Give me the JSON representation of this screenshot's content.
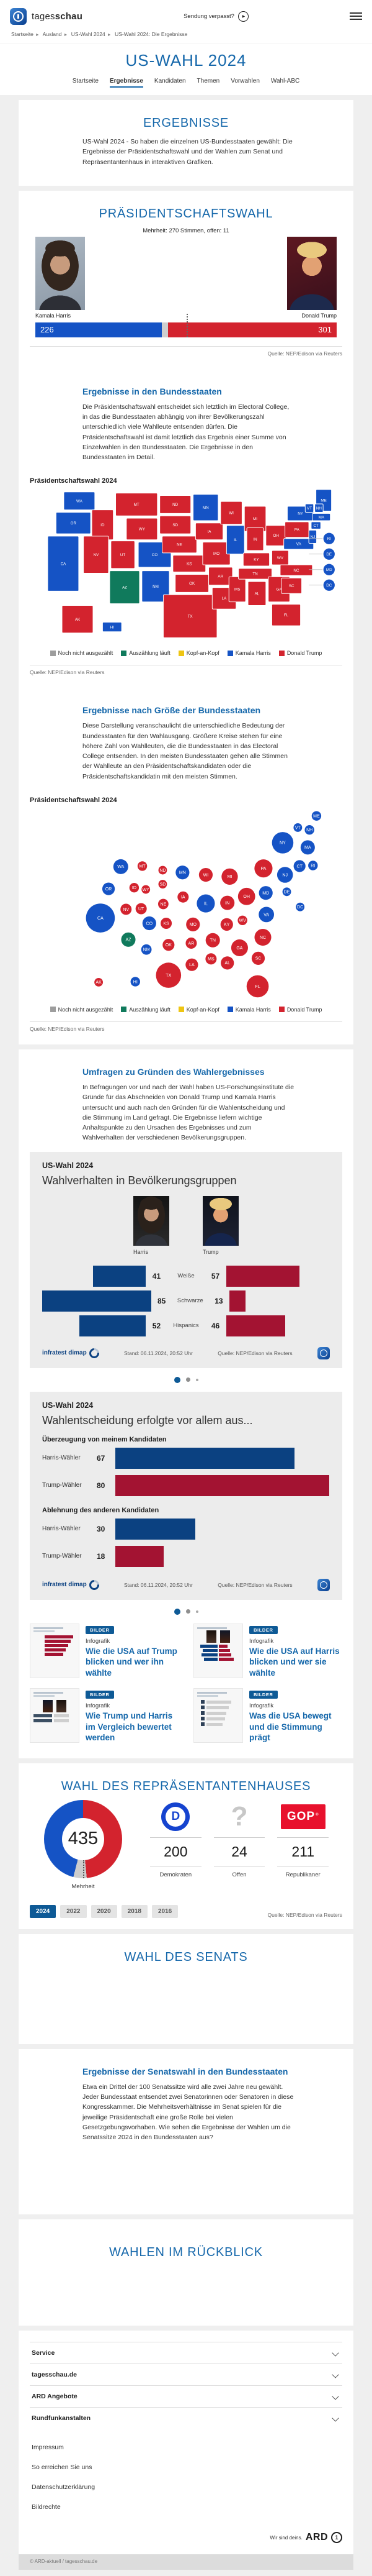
{
  "header": {
    "brand_light": "tages",
    "brand_bold": "schau",
    "sendung_verpasst": "Sendung verpasst?"
  },
  "breadcrumb": [
    "Startseite",
    "Ausland",
    "US-Wahl 2024",
    "US-Wahl 2024: Die Ergebnisse"
  ],
  "hero": {
    "title": "US-WAHL 2024",
    "tabs": [
      {
        "label": "Startseite",
        "active": false
      },
      {
        "label": "Ergebnisse",
        "active": true
      },
      {
        "label": "Kandidaten",
        "active": false
      },
      {
        "label": "Themen",
        "active": false
      },
      {
        "label": "Vorwahlen",
        "active": false
      },
      {
        "label": "Wahl-ABC",
        "active": false
      }
    ]
  },
  "ergebnisse": {
    "heading": "ERGEBNISSE",
    "text": "US-Wahl 2024 - So haben die einzelnen US-Bundesstaaten gewählt: Die Ergebnisse der Präsidentschaftswahl und der Wahlen zum Senat und Repräsentantenhaus in interaktiven Grafiken."
  },
  "praesident": {
    "heading": "PRÄSIDENTSCHAFTSWAHL",
    "majority_note": "Mehrheit: 270 Stimmen, offen: 11",
    "harris_name": "Kamala Harris",
    "trump_name": "Donald Trump",
    "quelle": "Quelle: NEP/Edison via Reuters"
  },
  "states_section": {
    "heading": "Ergebnisse in den Bundesstaaten",
    "text": "Die Präsidentschaftswahl entscheidet sich letztlich im Electoral College, in das die Bundesstaaten abhängig von ihrer Bevölkerungszahl unterschiedlich viele Wahlleute entsenden dürfen. Die Präsidentschaftswahl ist damit letztlich das Ergebnis einer Summe von Einzelwahlen in den Bundesstaaten. Die Ergebnisse in den Bundesstaaten im Detail.",
    "chart_label": "Präsidentschaftswahl 2024",
    "quelle": "Quelle: NEP/Edison via Reuters"
  },
  "size_section": {
    "heading": "Ergebnisse nach Größe der Bundesstaaten",
    "text": "Diese Darstellung veranschaulicht die unterschiedliche Bedeutung der Bundesstaaten für den Wahlausgang. Größere Kreise stehen für eine höhere Zahl von Wahlleuten, die die Bundesstaaten in das Electoral College entsenden. In den meisten Bundesstaaten gehen alle Stimmen der Wahlleute an den Präsidentschaftskandidaten oder die Präsidentschaftskandidatin mit den meisten Stimmen.",
    "chart_label": "Präsidentschaftswahl 2024",
    "quelle": "Quelle: NEP/Edison via Reuters"
  },
  "umfragen": {
    "heading": "Umfragen zu Gründen des Wahlergebnisses",
    "text": "In Befragungen vor und nach der Wahl haben US-Forschungsinstitute die Gründe für das Abschneiden von Donald Trump und Kamala Harris untersucht und auch nach den Gründen für die Wahlentscheidung und die Stimmung im Land gefragt. Die Ergebnisse liefern wichtige Anhaltspunkte zu den Ursachen des Ergebnisses und zum Wahlverhalten der verschiedenen Bevölkerungsgruppen."
  },
  "teasers": {
    "badge": "BILDER",
    "kind": "Infografik",
    "items": [
      {
        "title": "Wie die USA auf Trump blicken und wer ihn wählte"
      },
      {
        "title": "Wie die USA auf Harris blicken und wer sie wählte"
      },
      {
        "title": "Wie Trump und Harris im Vergleich bewertet werden"
      },
      {
        "title": "Was die USA bewegt und die Stimmung prägt"
      }
    ]
  },
  "senat": {
    "heading": "WAHL DES SENATS"
  },
  "senatswahl": {
    "heading": "Ergebnisse der Senatswahl in den Bundesstaaten",
    "text": "Etwa ein Drittel der 100 Senatssitze wird alle zwei Jahre neu gewählt. Jeder Bundesstaat entsendet zwei Senatorinnen oder Senatoren in diese Kongresskammer. Die Mehrheitsverhältnisse im Senat spielen für die jeweilige Präsidentschaft eine große Rolle bei vielen Gesetzgebungsvorhaben. Wie sehen die Ergebnisse der Wahlen um die Senatssitze 2024 in den Bundesstaaten aus?"
  },
  "rueckblick": {
    "heading": "WAHLEN IM RÜCKBLICK"
  },
  "footer": {
    "accordion": [
      "Service",
      "tagesschau.de",
      "ARD Angebote",
      "Rundfunkanstalten"
    ],
    "links": [
      "Impressum",
      "So erreichen Sie uns",
      "Datenschutzerklärung",
      "Bildrechte"
    ],
    "ard_slogan": "Wir sind deins.",
    "ard_word": "ARD",
    "copyright": "© ARD-aktuell / tagesschau.de"
  },
  "result_colors": {
    "harris": "#1553c5",
    "trump": "#d3232e",
    "counting": "#107a5c",
    "tossup": "#eec513",
    "open": "#9d9d9d",
    "infra_blue": "#0b4181",
    "infra_red": "#a31332"
  },
  "chart_data": [
    {
      "type": "bar",
      "name": "electoral-college-total",
      "title": "Präsidentschaftswahl 2024",
      "harris": 226,
      "open": 11,
      "trump": 301,
      "majority": 270,
      "total": 538,
      "source": "Quelle: NEP/Edison via Reuters"
    },
    {
      "type": "map",
      "name": "praesidentschaftswahl-bundesstaaten",
      "legend": [
        {
          "label": "Noch nicht ausgezählt",
          "key": "open"
        },
        {
          "label": "Auszählung läuft",
          "key": "counting"
        },
        {
          "label": "Kopf-an-Kopf",
          "key": "tossup"
        },
        {
          "label": "Kamala Harris",
          "key": "harris"
        },
        {
          "label": "Donald Trump",
          "key": "trump"
        }
      ],
      "states": [
        {
          "a": "WA",
          "w": "harris",
          "ev": 12,
          "g": [
            55,
            6,
            52,
            30
          ],
          "b": [
            148,
            101
          ]
        },
        {
          "a": "OR",
          "w": "harris",
          "ev": 8,
          "g": [
            42,
            40,
            58,
            36
          ],
          "b": [
            127,
            139
          ]
        },
        {
          "a": "CA",
          "w": "harris",
          "ev": 54,
          "g": [
            28,
            80,
            52,
            92
          ],
          "b": [
            113,
            189
          ]
        },
        {
          "a": "ID",
          "w": "trump",
          "ev": 4,
          "g": [
            102,
            36,
            36,
            50
          ],
          "b": [
            171,
            137
          ]
        },
        {
          "a": "NV",
          "w": "trump",
          "ev": 6,
          "g": [
            88,
            80,
            42,
            62
          ],
          "b": [
            157,
            174
          ]
        },
        {
          "a": "UT",
          "w": "trump",
          "ev": 6,
          "g": [
            134,
            88,
            40,
            46
          ],
          "b": [
            183,
            173
          ]
        },
        {
          "a": "AZ",
          "w": "counting",
          "ev": 11,
          "g": [
            132,
            138,
            50,
            55
          ],
          "b": [
            161,
            226
          ]
        },
        {
          "a": "MT",
          "w": "trump",
          "ev": 4,
          "g": [
            142,
            8,
            70,
            38
          ],
          "b": [
            185,
            100
          ]
        },
        {
          "a": "WY",
          "w": "trump",
          "ev": 3,
          "g": [
            160,
            50,
            52,
            36
          ],
          "b": [
            191,
            140
          ]
        },
        {
          "a": "CO",
          "w": "harris",
          "ev": 10,
          "g": [
            180,
            90,
            55,
            42
          ],
          "b": [
            197,
            198
          ]
        },
        {
          "a": "NM",
          "w": "harris",
          "ev": 5,
          "g": [
            186,
            138,
            46,
            52
          ],
          "b": [
            192,
            243
          ]
        },
        {
          "a": "ND",
          "w": "trump",
          "ev": 3,
          "g": [
            216,
            12,
            52,
            30
          ],
          "b": [
            220,
            107
          ]
        },
        {
          "a": "SD",
          "w": "trump",
          "ev": 3,
          "g": [
            216,
            46,
            52,
            30
          ],
          "b": [
            220,
            131
          ]
        },
        {
          "a": "NE",
          "w": "trump",
          "ev": 5,
          "g": [
            220,
            80,
            58,
            28
          ],
          "b": [
            221,
            165
          ]
        },
        {
          "a": "KS",
          "w": "trump",
          "ev": 6,
          "g": [
            238,
            112,
            55,
            28
          ],
          "b": [
            226,
            198
          ]
        },
        {
          "a": "OK",
          "w": "trump",
          "ev": 7,
          "g": [
            242,
            144,
            56,
            30
          ],
          "b": [
            230,
            235
          ]
        },
        {
          "a": "TX",
          "w": "trump",
          "ev": 40,
          "g": [
            222,
            178,
            90,
            72
          ],
          "b": [
            230,
            287
          ]
        },
        {
          "a": "MN",
          "w": "harris",
          "ev": 10,
          "g": [
            272,
            10,
            42,
            44
          ],
          "b": [
            254,
            111
          ]
        },
        {
          "a": "IA",
          "w": "trump",
          "ev": 6,
          "g": [
            276,
            58,
            46,
            28
          ],
          "b": [
            255,
            153
          ]
        },
        {
          "a": "MO",
          "w": "trump",
          "ev": 10,
          "g": [
            288,
            90,
            46,
            38
          ],
          "b": [
            272,
            200
          ]
        },
        {
          "a": "AR",
          "w": "trump",
          "ev": 6,
          "g": [
            298,
            132,
            40,
            30
          ],
          "b": [
            269,
            232
          ]
        },
        {
          "a": "LA",
          "w": "trump",
          "ev": 8,
          "g": [
            304,
            166,
            40,
            36
          ],
          "b": [
            270,
            269
          ]
        },
        {
          "a": "WI",
          "w": "trump",
          "ev": 10,
          "g": [
            318,
            22,
            36,
            38
          ],
          "b": [
            294,
            115
          ]
        },
        {
          "a": "IL",
          "w": "harris",
          "ev": 19,
          "g": [
            328,
            62,
            30,
            48
          ],
          "b": [
            294,
            164
          ]
        },
        {
          "a": "MS",
          "w": "trump",
          "ev": 6,
          "g": [
            332,
            148,
            28,
            42
          ],
          "b": [
            303,
            259
          ]
        },
        {
          "a": "MI",
          "w": "trump",
          "ev": 15,
          "g": [
            358,
            30,
            36,
            42
          ],
          "b": [
            335,
            118
          ]
        },
        {
          "a": "IN",
          "w": "trump",
          "ev": 11,
          "g": [
            362,
            66,
            28,
            38
          ],
          "b": [
            331,
            163
          ]
        },
        {
          "a": "KY",
          "w": "trump",
          "ev": 8,
          "g": [
            356,
            108,
            44,
            22
          ],
          "b": [
            330,
            200
          ]
        },
        {
          "a": "TN",
          "w": "trump",
          "ev": 11,
          "g": [
            348,
            134,
            56,
            18
          ],
          "b": [
            306,
            227
          ]
        },
        {
          "a": "AL",
          "w": "trump",
          "ev": 9,
          "g": [
            364,
            156,
            30,
            40
          ],
          "b": [
            331,
            266
          ]
        },
        {
          "a": "OH",
          "w": "trump",
          "ev": 17,
          "g": [
            394,
            62,
            34,
            34
          ],
          "b": [
            364,
            152
          ]
        },
        {
          "a": "WV",
          "w": "trump",
          "ev": 4,
          "g": [
            404,
            104,
            28,
            24
          ],
          "b": [
            357,
            193
          ]
        },
        {
          "a": "GA",
          "w": "trump",
          "ev": 16,
          "g": [
            398,
            148,
            36,
            42
          ],
          "b": [
            352,
            240
          ]
        },
        {
          "a": "FL",
          "w": "trump",
          "ev": 30,
          "g": [
            404,
            194,
            48,
            36
          ],
          "b": [
            383,
            306
          ]
        },
        {
          "a": "VA",
          "w": "harris",
          "ev": 13,
          "g": [
            424,
            84,
            50,
            18
          ],
          "b": [
            398,
            183
          ]
        },
        {
          "a": "NC",
          "w": "trump",
          "ev": 16,
          "g": [
            418,
            128,
            54,
            18
          ],
          "b": [
            392,
            222
          ]
        },
        {
          "a": "SC",
          "w": "trump",
          "ev": 9,
          "g": [
            420,
            150,
            34,
            26
          ],
          "b": [
            384,
            258
          ]
        },
        {
          "a": "PA",
          "w": "trump",
          "ev": 19,
          "g": [
            426,
            56,
            40,
            26
          ],
          "b": [
            393,
            104
          ]
        },
        {
          "a": "NY",
          "w": "harris",
          "ev": 28,
          "g": [
            430,
            30,
            44,
            24
          ],
          "b": [
            426,
            60
          ]
        },
        {
          "a": "ME",
          "w": "harris",
          "ev": 4,
          "g": [
            478,
            2,
            26,
            36
          ],
          "b": [
            484,
            14
          ]
        },
        {
          "a": "VT",
          "w": "harris",
          "ev": 3,
          "g": [
            460,
            26,
            14,
            14
          ],
          "b": [
            452,
            34
          ]
        },
        {
          "a": "NH",
          "w": "harris",
          "ev": 4,
          "g": [
            476,
            26,
            14,
            14
          ],
          "b": [
            472,
            38
          ]
        },
        {
          "a": "MA",
          "w": "harris",
          "ev": 11,
          "g": [
            472,
            42,
            30,
            12
          ],
          "b": [
            469,
            68
          ]
        },
        {
          "a": "CT",
          "w": "harris",
          "ev": 7,
          "g": [
            470,
            56,
            16,
            12
          ],
          "b": [
            455,
            100
          ]
        },
        {
          "a": "NJ",
          "w": "harris",
          "ev": 14,
          "g": [
            466,
            70,
            13,
            22
          ],
          "b": [
            430,
            115
          ]
        },
        {
          "a": "AK",
          "w": "trump",
          "ev": 3,
          "g": [
            52,
            196,
            52,
            46
          ],
          "b": [
            110,
            299
          ]
        },
        {
          "a": "HI",
          "w": "harris",
          "ev": 4,
          "g": [
            120,
            224,
            32,
            16
          ],
          "b": [
            173,
            298
          ]
        },
        {
          "a": "RI",
          "w": "harris",
          "ev": 4,
          "gc": [
            500,
            84
          ],
          "b": [
            478,
            99
          ]
        },
        {
          "a": "DE",
          "w": "harris",
          "ev": 3,
          "gc": [
            500,
            110
          ],
          "b": [
            433,
            144
          ]
        },
        {
          "a": "MD",
          "w": "harris",
          "ev": 10,
          "gc": [
            500,
            136
          ],
          "b": [
            397,
            146
          ]
        },
        {
          "a": "DC",
          "w": "harris",
          "ev": 3,
          "gc": [
            500,
            162
          ],
          "b": [
            456,
            170
          ]
        }
      ]
    },
    {
      "type": "bubble",
      "name": "praesidentschaftswahl-wahlleute-groesse",
      "note": "circle size = number of electors per state"
    },
    {
      "type": "bar",
      "name": "wahlverhalten-bevoelkerungsgruppen",
      "kicker": "US-Wahl 2024",
      "title": "Wahlverhalten in Bevölkerungsgruppen",
      "col_harris": "Harris",
      "col_trump": "Trump",
      "categories": [
        "Weiße",
        "Schwarze",
        "Hispanics"
      ],
      "harris": [
        41,
        85,
        52
      ],
      "trump": [
        57,
        13,
        46
      ],
      "credit": "infratest dimap",
      "stand": "Stand:  06.11.2024, 20:52 Uhr",
      "source": "Quelle: NEP/Edison via Reuters"
    },
    {
      "type": "bar",
      "name": "gruende-wahlentscheidung",
      "kicker": "US-Wahl 2024",
      "title": "Wahlentscheidung erfolgte vor allem aus...",
      "row_label_harris": "Harris-Wähler",
      "row_label_trump": "Trump-Wähler",
      "groups": [
        {
          "label": "Überzeugung von meinem Kandidaten",
          "harris": 67,
          "trump": 80
        },
        {
          "label": "Ablehnung des anderen Kandidaten",
          "harris": 30,
          "trump": 18
        }
      ],
      "credit": "infratest dimap",
      "stand": "Stand:  06.11.2024, 20:52 Uhr",
      "source": "Quelle: NEP/Edison via Reuters"
    },
    {
      "type": "donut",
      "name": "wahl-repraesentantenhaus",
      "heading": "WAHL DES REPRÄSENTANTENHAUSES",
      "total": 435,
      "majority_label": "Mehrheit",
      "dem": 200,
      "open": 24,
      "rep": 211,
      "label_dem": "Demokraten",
      "label_open": "Offen",
      "label_rep": "Republikaner",
      "years": [
        "2024",
        "2022",
        "2020",
        "2018",
        "2016"
      ],
      "active_year": "2024",
      "source": "Quelle: NEP/Edison via Reuters"
    }
  ]
}
